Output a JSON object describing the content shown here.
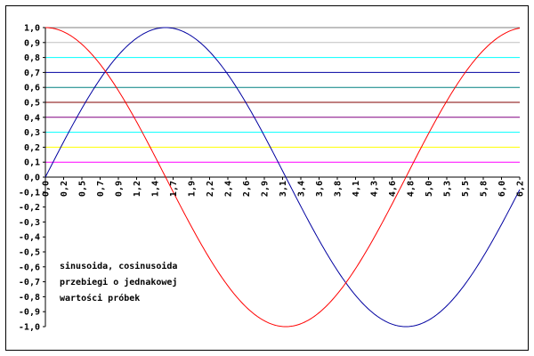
{
  "chart_data": {
    "type": "line",
    "xlim": [
      0,
      6.2
    ],
    "ylim": [
      -1.0,
      1.0
    ],
    "x_tick_labels": [
      "0,0",
      "0,2",
      "0,5",
      "0,7",
      "0,9",
      "1,2",
      "1,4",
      "1,7",
      "1,9",
      "2,2",
      "2,4",
      "2,6",
      "2,9",
      "3,1",
      "3,4",
      "3,6",
      "3,8",
      "4,1",
      "4,3",
      "4,6",
      "4,8",
      "5,0",
      "5,3",
      "5,5",
      "5,8",
      "6,0",
      "6,2"
    ],
    "y_tick_labels": [
      "1,0",
      "0,9",
      "0,8",
      "0,7",
      "0,6",
      "0,5",
      "0,4",
      "0,3",
      "0,2",
      "0,1",
      "0,0",
      "-0,1",
      "-0,2",
      "-0,3",
      "-0,4",
      "-0,5",
      "-0,6",
      "-0,7",
      "-0,8",
      "-0,9",
      "-1,0"
    ],
    "series": [
      {
        "function": "sin",
        "color": "#0000a0"
      },
      {
        "function": "cos",
        "color": "#ff0000"
      }
    ],
    "reference_lines": [
      {
        "y": 1.0,
        "color": "#808080"
      },
      {
        "y": 0.9,
        "color": "#c0c0c0"
      },
      {
        "y": 0.8,
        "color": "#00ffff"
      },
      {
        "y": 0.7,
        "color": "#0000a0"
      },
      {
        "y": 0.6,
        "color": "#008080"
      },
      {
        "y": 0.5,
        "color": "#800000"
      },
      {
        "y": 0.4,
        "color": "#800080"
      },
      {
        "y": 0.3,
        "color": "#00ffff"
      },
      {
        "y": 0.2,
        "color": "#ffff00"
      },
      {
        "y": 0.1,
        "color": "#ff00ff"
      }
    ],
    "annotation": [
      "sinusoida, cosinusoida",
      "przebiegi o jednakowej",
      "wartości próbek"
    ],
    "grid": false,
    "legend": "none"
  }
}
